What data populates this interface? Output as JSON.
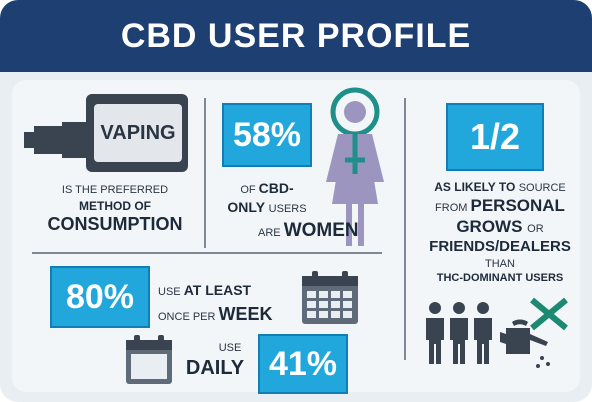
{
  "header": {
    "title": "CBD USER PROFILE"
  },
  "vaping": {
    "device_label": "VAPING",
    "line1": "IS THE PREFERRED",
    "line2": "METHOD OF",
    "line3": "CONSUMPTION"
  },
  "women": {
    "percent": "58%",
    "line1a": "OF ",
    "line1b": "CBD-",
    "line2a": "ONLY ",
    "line2b": "USERS",
    "line3a": "ARE ",
    "line3b": "WOMEN"
  },
  "weekly": {
    "percent": "80%",
    "line1a": "USE ",
    "line1b": "AT LEAST",
    "line2a": "ONCE PER ",
    "line2b": "WEEK"
  },
  "daily": {
    "line1": "USE",
    "line2": "DAILY",
    "percent": "41%"
  },
  "source": {
    "ratio": "1/2",
    "line1a": "AS LIKELY TO ",
    "line1b": "SOURCE",
    "line2a": "FROM ",
    "line2b": "PERSONAL",
    "line3a": "GROWS ",
    "line3b": "OR",
    "line4": "FRIENDS/DEALERS",
    "line5": "THAN",
    "line6": "THC-DOMINANT USERS"
  },
  "colors": {
    "header": "#1d3f72",
    "accent": "#22a7dd",
    "icon_dark": "#3a4350",
    "women_icon": "#9b95bf",
    "venus_ring": "#1f8f8a",
    "x_mark": "#1c8a72"
  },
  "icons": [
    "vape-pen-icon",
    "woman-icon",
    "venus-symbol-icon",
    "calendar-icon",
    "blank-calendar-icon",
    "people-icon",
    "watering-can-icon",
    "x-mark-icon"
  ]
}
